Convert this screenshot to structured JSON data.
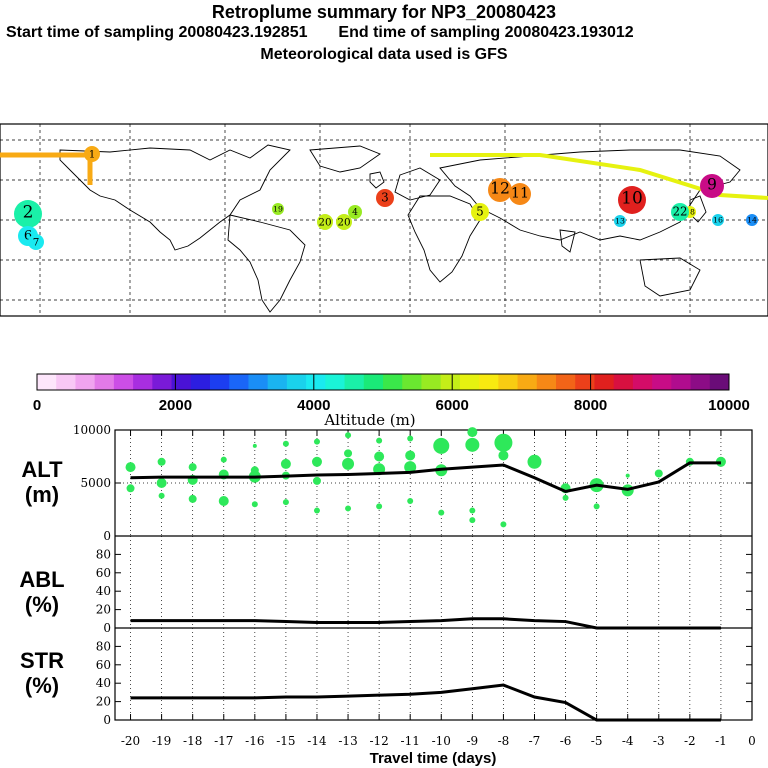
{
  "header": {
    "title": "Retroplume summary for NP3_20080423",
    "start_label": "Start time of sampling 20080423.192851",
    "end_label": "End time of sampling 20080423.193012",
    "met_label": "Meteorological data used is GFS"
  },
  "colorbar": {
    "ticks": [
      "0",
      "2000",
      "4000",
      "6000",
      "8000",
      "10000"
    ],
    "label": "Altitude (m)",
    "range": [
      0,
      10000
    ],
    "colors": [
      "#fde6fb",
      "#f8c8f5",
      "#f0a4ef",
      "#e27ae8",
      "#cc4ee6",
      "#a82ee0",
      "#7a1ad8",
      "#4a12d6",
      "#2c1ee0",
      "#1c3ef0",
      "#1a66f8",
      "#1a8ef6",
      "#1ab4f0",
      "#1ad2ec",
      "#1aeaf0",
      "#1af4d8",
      "#1af0a8",
      "#1aea78",
      "#3ae84a",
      "#6ae830",
      "#98ea22",
      "#c4ee18",
      "#e6f210",
      "#f8ea10",
      "#f8cc12",
      "#f8aa14",
      "#f68816",
      "#f26418",
      "#ec401a",
      "#e0201e",
      "#d81040",
      "#d40c68",
      "#c80c86",
      "#b00c8e",
      "#8c0c86",
      "#6a0c78"
    ]
  },
  "map_labels": [
    {
      "text": "1",
      "c": "#f8aa14"
    },
    {
      "text": "2",
      "c": "#1af0a8"
    },
    {
      "text": "3",
      "c": "#ec401a"
    },
    {
      "text": "4",
      "c": "#98ea22"
    },
    {
      "text": "5",
      "c": "#e6f210"
    },
    {
      "text": "6",
      "c": "#1aeaf0"
    },
    {
      "text": "7",
      "c": "#1aeaf0"
    },
    {
      "text": "9",
      "c": "#c80c86"
    },
    {
      "text": "10",
      "c": "#e0201e"
    },
    {
      "text": "11",
      "c": "#f68816"
    },
    {
      "text": "12",
      "c": "#f68816"
    },
    {
      "text": "13",
      "c": "#1ad2ec"
    },
    {
      "text": "14",
      "c": "#1a8ef6"
    },
    {
      "text": "16",
      "c": "#1ad2ec"
    },
    {
      "text": "18",
      "c": "#e6f210"
    },
    {
      "text": "19",
      "c": "#98ea22"
    },
    {
      "text": "20",
      "c": "#c4ee18"
    },
    {
      "text": "22",
      "c": "#1af0a8"
    }
  ],
  "chart_data": [
    {
      "type": "line",
      "panel": "ALT",
      "ylabel": "ALT (m)",
      "ylim": [
        0,
        10000
      ],
      "yticks": [
        "10000",
        "5000",
        "0"
      ],
      "x": [
        -20,
        -19,
        -18,
        -17,
        -16,
        -15,
        -14,
        -13,
        -12,
        -11,
        -10,
        -9,
        -8,
        -7,
        -6,
        -5,
        -4,
        -3,
        -2,
        -1
      ],
      "values": [
        5500,
        5550,
        5550,
        5550,
        5550,
        5650,
        5750,
        5800,
        5900,
        6000,
        6300,
        6500,
        6700,
        5500,
        4200,
        4800,
        4400,
        5100,
        6900,
        6900
      ],
      "dots": [
        [
          -20,
          6500,
          5
        ],
        [
          -20,
          4500,
          4
        ],
        [
          -19,
          7000,
          4
        ],
        [
          -19,
          5000,
          5
        ],
        [
          -19,
          3800,
          3
        ],
        [
          -18,
          6500,
          4
        ],
        [
          -18,
          5300,
          5
        ],
        [
          -18,
          3500,
          4
        ],
        [
          -17,
          7200,
          3
        ],
        [
          -17,
          5800,
          5
        ],
        [
          -17,
          3300,
          5
        ],
        [
          -16,
          8500,
          2
        ],
        [
          -16,
          6200,
          4
        ],
        [
          -16,
          5600,
          6
        ],
        [
          -16,
          3000,
          3
        ],
        [
          -15,
          8700,
          3
        ],
        [
          -15,
          6800,
          5
        ],
        [
          -15,
          5700,
          4
        ],
        [
          -15,
          3200,
          3
        ],
        [
          -14,
          8900,
          3
        ],
        [
          -14,
          7000,
          5
        ],
        [
          -14,
          5200,
          4
        ],
        [
          -14,
          2400,
          3
        ],
        [
          -13,
          9500,
          3
        ],
        [
          -13,
          7800,
          4
        ],
        [
          -13,
          6800,
          6
        ],
        [
          -13,
          2600,
          3
        ],
        [
          -12,
          9000,
          3
        ],
        [
          -12,
          7500,
          5
        ],
        [
          -12,
          6300,
          6
        ],
        [
          -12,
          2800,
          3
        ],
        [
          -11,
          9200,
          3
        ],
        [
          -11,
          7600,
          5
        ],
        [
          -11,
          6500,
          6
        ],
        [
          -11,
          3300,
          3
        ],
        [
          -10,
          8500,
          8
        ],
        [
          -10,
          6200,
          6
        ],
        [
          -10,
          2200,
          3
        ],
        [
          -9,
          9800,
          5
        ],
        [
          -9,
          8600,
          7
        ],
        [
          -9,
          2400,
          3
        ],
        [
          -9,
          1500,
          3
        ],
        [
          -8,
          8800,
          9
        ],
        [
          -8,
          7600,
          5
        ],
        [
          -8,
          1100,
          3
        ],
        [
          -7,
          7000,
          7
        ],
        [
          -6,
          4500,
          5
        ],
        [
          -6,
          3600,
          3
        ],
        [
          -5,
          4800,
          7
        ],
        [
          -5,
          2800,
          3
        ],
        [
          -4,
          4300,
          6
        ],
        [
          -4,
          5700,
          2
        ],
        [
          -3,
          5900,
          4
        ],
        [
          -2,
          7000,
          4
        ],
        [
          -1,
          7000,
          5
        ]
      ]
    },
    {
      "type": "line",
      "panel": "ABL",
      "ylabel": "ABL (%)",
      "ylim": [
        0,
        100
      ],
      "yticks": [
        "80",
        "60",
        "40",
        "20",
        "0"
      ],
      "x": [
        -20,
        -19,
        -18,
        -17,
        -16,
        -15,
        -14,
        -13,
        -12,
        -11,
        -10,
        -9,
        -8,
        -7,
        -6,
        -5,
        -4,
        -3,
        -2,
        -1
      ],
      "values": [
        8,
        8,
        8,
        8,
        8,
        7,
        6,
        6,
        6,
        7,
        8,
        10,
        10,
        8,
        7,
        0,
        0,
        0,
        0,
        0
      ]
    },
    {
      "type": "line",
      "panel": "STR",
      "ylabel": "STR (%)",
      "ylim": [
        0,
        100
      ],
      "yticks": [
        "80",
        "60",
        "40",
        "20",
        "0"
      ],
      "x": [
        -20,
        -19,
        -18,
        -17,
        -16,
        -15,
        -14,
        -13,
        -12,
        -11,
        -10,
        -9,
        -8,
        -7,
        -6,
        -5,
        -4,
        -3,
        -2,
        -1
      ],
      "values": [
        24,
        24,
        24,
        24,
        24,
        25,
        25,
        26,
        27,
        28,
        30,
        34,
        38,
        25,
        19,
        0,
        0,
        0,
        0,
        0
      ],
      "xticks": [
        "-20",
        "-19",
        "-18",
        "-17",
        "-16",
        "-15",
        "-14",
        "-13",
        "-12",
        "-11",
        "-10",
        "-9",
        "-8",
        "-7",
        "-6",
        "-5",
        "-4",
        "-3",
        "-2",
        "-1",
        "0"
      ],
      "xlabel": "Travel time (days)"
    }
  ],
  "panel_labels": {
    "alt_line1": "ALT",
    "alt_line2": "(m)",
    "abl_line1": "ABL",
    "abl_line2": "(%)",
    "str_line1": "STR",
    "str_line2": "(%)"
  }
}
